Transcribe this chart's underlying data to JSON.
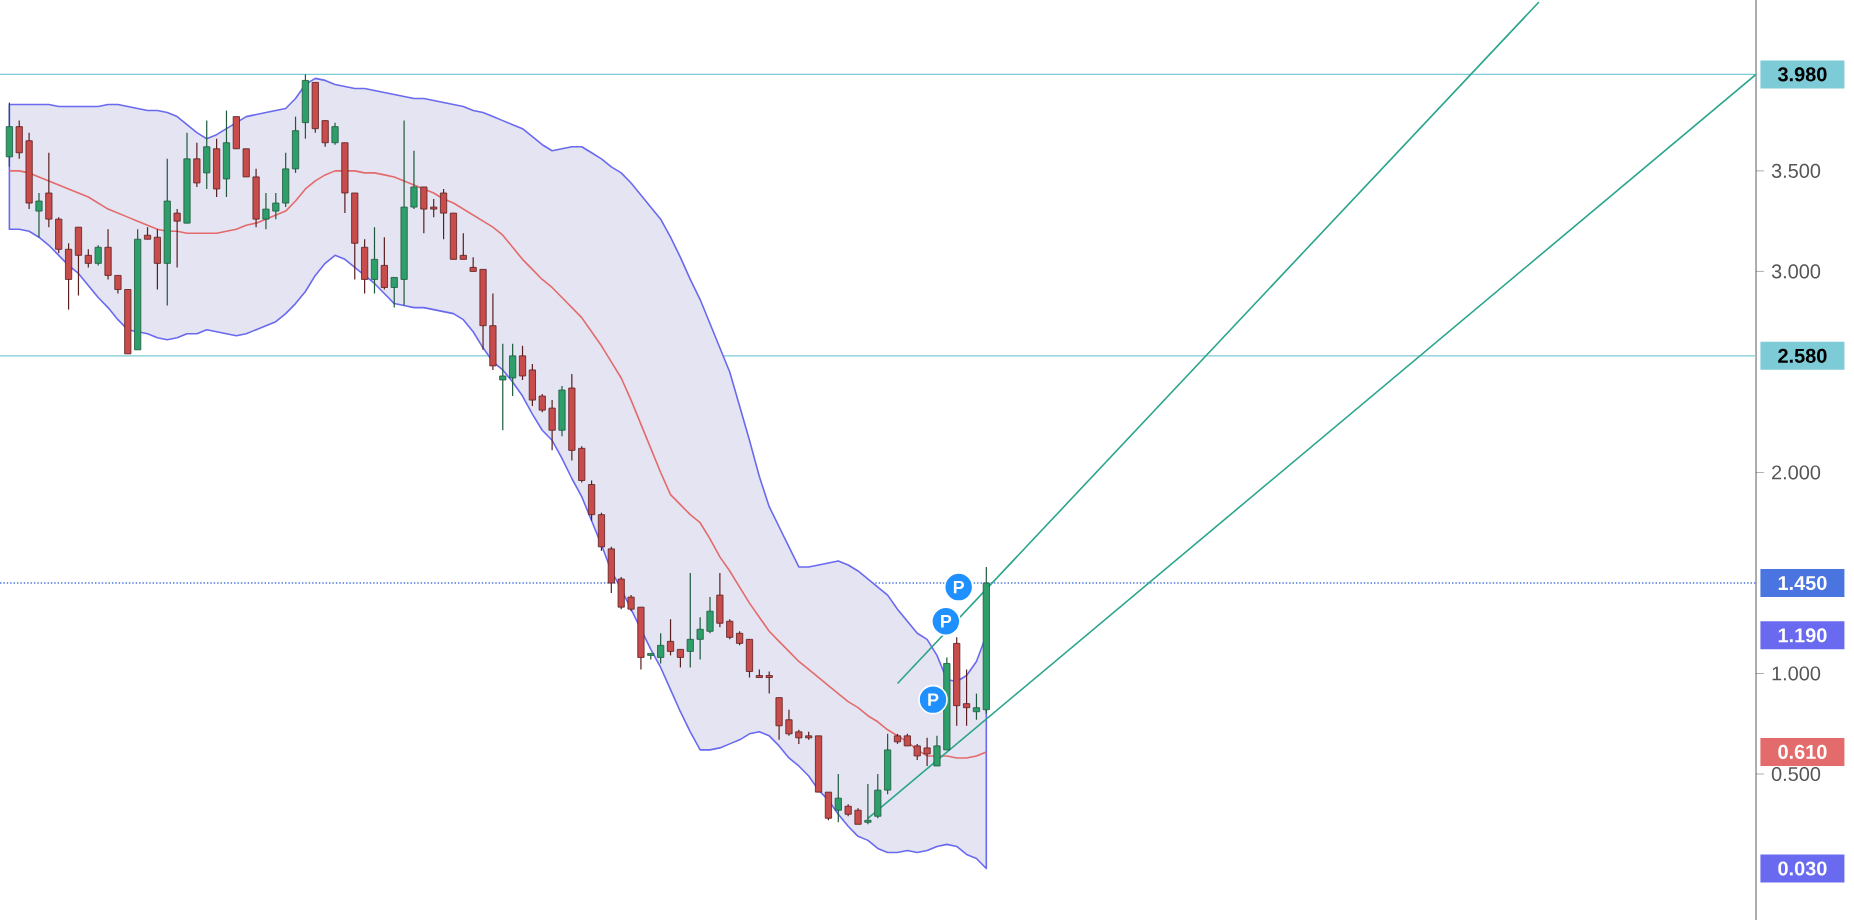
{
  "chart_data": {
    "type": "candlestick",
    "categories": [
      null,
      null,
      null,
      null,
      null,
      null,
      null,
      null,
      null,
      null,
      null,
      null,
      null,
      null,
      null,
      null,
      null,
      null,
      null,
      null,
      null,
      null,
      null,
      null,
      null,
      null,
      null,
      null,
      null,
      null,
      null,
      null,
      null,
      null,
      null,
      null,
      null,
      null,
      null,
      null,
      null,
      null,
      null,
      null,
      null,
      null,
      null,
      null,
      null,
      null,
      null,
      null,
      null,
      null,
      null,
      null,
      null,
      null,
      null,
      null,
      null,
      null,
      null,
      null,
      null,
      null,
      null,
      null,
      null,
      null,
      null,
      null,
      null,
      null,
      null,
      null,
      null,
      null,
      null,
      null,
      null,
      null,
      null,
      null,
      null,
      null,
      null,
      null,
      null,
      null,
      null,
      null,
      null,
      null,
      null,
      null,
      null,
      null,
      null,
      null,
      null,
      null,
      null,
      null,
      null,
      null,
      null,
      null,
      null,
      null,
      null,
      null,
      null,
      null,
      null,
      null,
      null,
      null,
      null,
      null,
      null,
      null,
      null,
      null,
      null,
      null,
      null,
      null,
      null,
      null,
      null,
      null,
      null,
      null,
      null,
      null,
      null,
      null,
      null,
      null,
      null,
      null,
      null,
      null,
      null,
      null,
      null,
      null,
      null,
      null,
      null,
      null,
      null,
      null,
      null,
      null,
      null,
      null,
      null,
      null,
      null,
      null,
      null,
      null,
      null,
      null,
      null,
      null,
      null,
      null,
      null,
      null,
      null,
      null,
      null,
      null,
      null,
      null
    ],
    "ohlc": [
      [
        3.57,
        3.84,
        3.52,
        3.72
      ],
      [
        3.72,
        3.75,
        3.56,
        3.59
      ],
      [
        3.65,
        3.69,
        3.31,
        3.34
      ],
      [
        3.3,
        3.39,
        3.17,
        3.35
      ],
      [
        3.39,
        3.59,
        3.22,
        3.26
      ],
      [
        3.26,
        3.27,
        3.09,
        3.11
      ],
      [
        3.11,
        3.14,
        2.81,
        2.96
      ],
      [
        3.22,
        3.22,
        2.88,
        3.08
      ],
      [
        3.08,
        3.11,
        3.02,
        3.04
      ],
      [
        3.04,
        3.13,
        3.03,
        3.12
      ],
      [
        3.12,
        3.21,
        2.96,
        2.98
      ],
      [
        2.98,
        2.98,
        2.89,
        2.91
      ],
      [
        2.91,
        2.91,
        2.59,
        2.59
      ],
      [
        2.61,
        3.21,
        2.61,
        3.16
      ],
      [
        3.18,
        3.22,
        3.16,
        3.16
      ],
      [
        3.17,
        3.21,
        2.91,
        3.04
      ],
      [
        3.04,
        3.56,
        2.83,
        3.35
      ],
      [
        3.29,
        3.31,
        3.02,
        3.25
      ],
      [
        3.24,
        3.69,
        3.24,
        3.56
      ],
      [
        3.56,
        3.64,
        3.42,
        3.44
      ],
      [
        3.49,
        3.75,
        3.41,
        3.62
      ],
      [
        3.61,
        3.66,
        3.37,
        3.41
      ],
      [
        3.46,
        3.8,
        3.37,
        3.64
      ],
      [
        3.77,
        3.77,
        3.61,
        3.61
      ],
      [
        3.61,
        3.61,
        3.47,
        3.47
      ],
      [
        3.47,
        3.51,
        3.22,
        3.26
      ],
      [
        3.26,
        3.39,
        3.21,
        3.31
      ],
      [
        3.3,
        3.39,
        3.26,
        3.34
      ],
      [
        3.34,
        3.59,
        3.32,
        3.51
      ],
      [
        3.51,
        3.77,
        3.49,
        3.7
      ],
      [
        3.74,
        3.98,
        3.66,
        3.95
      ],
      [
        3.94,
        3.94,
        3.69,
        3.71
      ],
      [
        3.75,
        3.75,
        3.62,
        3.64
      ],
      [
        3.64,
        3.74,
        3.63,
        3.72
      ],
      [
        3.64,
        3.64,
        3.29,
        3.39
      ],
      [
        3.39,
        3.39,
        2.96,
        3.14
      ],
      [
        3.12,
        3.16,
        2.89,
        2.96
      ],
      [
        2.96,
        3.22,
        2.89,
        3.06
      ],
      [
        3.03,
        3.17,
        2.91,
        2.92
      ],
      [
        2.92,
        2.97,
        2.82,
        2.97
      ],
      [
        2.96,
        3.75,
        2.83,
        3.32
      ],
      [
        3.32,
        3.6,
        3.31,
        3.42
      ],
      [
        3.42,
        3.42,
        3.19,
        3.31
      ],
      [
        3.32,
        3.36,
        3.27,
        3.31
      ],
      [
        3.39,
        3.41,
        3.16,
        3.29
      ],
      [
        3.29,
        3.29,
        3.06,
        3.06
      ],
      [
        3.08,
        3.19,
        3.06,
        3.06
      ],
      [
        3.02,
        3.07,
        3.0,
        3.0
      ],
      [
        3.01,
        3.01,
        2.61,
        2.73
      ],
      [
        2.73,
        2.89,
        2.51,
        2.53
      ],
      [
        2.46,
        2.64,
        2.21,
        2.48
      ],
      [
        2.47,
        2.64,
        2.38,
        2.58
      ],
      [
        2.58,
        2.63,
        2.46,
        2.48
      ],
      [
        2.51,
        2.54,
        2.33,
        2.36
      ],
      [
        2.38,
        2.39,
        2.3,
        2.31
      ],
      [
        2.32,
        2.36,
        2.11,
        2.21
      ],
      [
        2.21,
        2.43,
        2.18,
        2.41
      ],
      [
        2.42,
        2.49,
        2.06,
        2.11
      ],
      [
        2.12,
        2.13,
        1.95,
        1.96
      ],
      [
        1.94,
        1.96,
        1.76,
        1.79
      ],
      [
        1.79,
        1.8,
        1.61,
        1.63
      ],
      [
        1.62,
        1.63,
        1.4,
        1.45
      ],
      [
        1.47,
        1.48,
        1.32,
        1.33
      ],
      [
        1.38,
        1.39,
        1.31,
        1.32
      ],
      [
        1.33,
        1.33,
        1.02,
        1.08
      ],
      [
        1.09,
        1.1,
        1.07,
        1.1
      ],
      [
        1.08,
        1.2,
        1.05,
        1.14
      ],
      [
        1.16,
        1.27,
        1.09,
        1.11
      ],
      [
        1.12,
        1.12,
        1.03,
        1.08
      ],
      [
        1.11,
        1.5,
        1.03,
        1.17
      ],
      [
        1.17,
        1.28,
        1.07,
        1.22
      ],
      [
        1.21,
        1.38,
        1.2,
        1.31
      ],
      [
        1.39,
        1.5,
        1.23,
        1.25
      ],
      [
        1.26,
        1.27,
        1.17,
        1.18
      ],
      [
        1.2,
        1.21,
        1.14,
        1.15
      ],
      [
        1.17,
        1.17,
        0.98,
        1.01
      ],
      [
        0.99,
        1.02,
        0.98,
        0.98
      ],
      [
        0.99,
        1.01,
        0.9,
        0.98
      ],
      [
        0.88,
        0.88,
        0.67,
        0.74
      ],
      [
        0.77,
        0.82,
        0.69,
        0.7
      ],
      [
        0.71,
        0.72,
        0.65,
        0.68
      ],
      [
        0.69,
        0.71,
        0.67,
        0.68
      ],
      [
        0.69,
        0.69,
        0.41,
        0.41
      ],
      [
        0.41,
        0.41,
        0.27,
        0.28
      ],
      [
        0.32,
        0.5,
        0.26,
        0.38
      ],
      [
        0.34,
        0.35,
        0.29,
        0.3
      ],
      [
        0.32,
        0.33,
        0.25,
        0.25
      ],
      [
        0.26,
        0.45,
        0.25,
        0.27
      ],
      [
        0.29,
        0.5,
        0.28,
        0.42
      ],
      [
        0.42,
        0.7,
        0.4,
        0.62
      ],
      [
        0.69,
        0.7,
        0.65,
        0.66
      ],
      [
        0.69,
        0.7,
        0.64,
        0.64
      ],
      [
        0.64,
        0.65,
        0.57,
        0.59
      ],
      [
        0.63,
        0.68,
        0.54,
        0.6
      ],
      [
        0.54,
        0.69,
        0.54,
        0.64
      ],
      [
        0.62,
        1.08,
        0.62,
        1.05
      ],
      [
        1.15,
        1.18,
        0.74,
        0.84
      ],
      [
        0.85,
        1.02,
        0.74,
        0.83
      ],
      [
        0.81,
        0.9,
        0.77,
        0.83
      ],
      [
        0.82,
        1.53,
        0.8,
        1.45
      ],
      null,
      null,
      null,
      null,
      null,
      null,
      null,
      null,
      null,
      null,
      null,
      null,
      null,
      null,
      null,
      null,
      null,
      null,
      null,
      null,
      null,
      null,
      null,
      null,
      null,
      null,
      null,
      null,
      null,
      null,
      null,
      null,
      null,
      null,
      null,
      null,
      null,
      null,
      null,
      null,
      null,
      null,
      null,
      null,
      null,
      null,
      null,
      null,
      null,
      null,
      null,
      null,
      null,
      null,
      null,
      null,
      null,
      null,
      null,
      null,
      null,
      null,
      null,
      null,
      null,
      null,
      null,
      null,
      null,
      null,
      null,
      null,
      null,
      null,
      null,
      null,
      null,
      null
    ],
    "series": [
      {
        "type": "line",
        "color": "#e36b6b",
        "values": [
          3.5,
          3.5,
          3.49,
          3.47,
          3.45,
          3.43,
          3.41,
          3.39,
          3.37,
          3.34,
          3.31,
          3.29,
          3.27,
          3.25,
          3.23,
          3.21,
          3.2,
          3.2,
          3.19,
          3.19,
          3.19,
          3.19,
          3.2,
          3.21,
          3.23,
          3.24,
          3.26,
          3.28,
          3.3,
          3.35,
          3.41,
          3.45,
          3.48,
          3.5,
          3.5,
          3.5,
          3.49,
          3.49,
          3.48,
          3.47,
          3.45,
          3.43,
          3.41,
          3.39,
          3.36,
          3.34,
          3.31,
          3.28,
          3.25,
          3.22,
          3.18,
          3.12,
          3.06,
          3.01,
          2.96,
          2.92,
          2.87,
          2.82,
          2.77,
          2.7,
          2.63,
          2.55,
          2.47,
          2.36,
          2.24,
          2.12,
          2.0,
          1.89,
          1.84,
          1.79,
          1.75,
          1.67,
          1.58,
          1.51,
          1.43,
          1.35,
          1.28,
          1.21,
          1.16,
          1.11,
          1.06,
          1.02,
          0.98,
          0.94,
          0.9,
          0.86,
          0.83,
          0.79,
          0.76,
          0.72,
          0.69,
          0.66,
          0.62,
          0.59,
          0.59,
          0.59,
          0.58,
          0.58,
          0.59,
          0.61,
          null,
          null,
          null,
          null,
          null,
          null,
          null,
          null,
          null,
          null,
          null,
          null,
          null,
          null,
          null,
          null,
          null,
          null,
          null,
          null,
          null,
          null,
          null,
          null,
          null,
          null,
          null,
          null,
          null,
          null,
          null,
          null,
          null,
          null,
          null,
          null,
          null,
          null,
          null,
          null,
          null,
          null,
          null,
          null,
          null,
          null,
          null,
          null,
          null,
          null,
          null,
          null,
          null,
          null,
          null,
          null,
          null,
          null,
          null,
          null,
          null,
          null,
          null,
          null,
          null,
          null,
          null,
          null,
          null,
          null,
          null,
          null,
          null,
          null,
          null,
          null,
          null,
          null
        ],
        "lower": [
          3.21,
          3.21,
          3.2,
          3.17,
          3.13,
          3.08,
          3.03,
          2.99,
          2.93,
          2.87,
          2.82,
          2.76,
          2.71,
          2.7,
          2.69,
          2.67,
          2.66,
          2.67,
          2.69,
          2.69,
          2.71,
          2.7,
          2.69,
          2.68,
          2.69,
          2.71,
          2.73,
          2.75,
          2.79,
          2.84,
          2.9,
          2.98,
          3.04,
          3.08,
          3.06,
          3.02,
          2.98,
          2.94,
          2.89,
          2.84,
          2.83,
          2.82,
          2.82,
          2.81,
          2.8,
          2.79,
          2.76,
          2.7,
          2.62,
          2.55,
          2.51,
          2.45,
          2.38,
          2.29,
          2.21,
          2.16,
          2.07,
          1.97,
          1.88,
          1.76,
          1.64,
          1.51,
          1.42,
          1.32,
          1.22,
          1.12,
          1.03,
          0.92,
          0.81,
          0.71,
          0.62,
          0.62,
          0.63,
          0.65,
          0.67,
          0.7,
          0.71,
          0.69,
          0.64,
          0.58,
          0.54,
          0.49,
          0.42,
          0.37,
          0.3,
          0.24,
          0.19,
          0.17,
          0.13,
          0.11,
          0.11,
          0.12,
          0.11,
          0.12,
          0.14,
          0.15,
          0.14,
          0.1,
          0.08,
          0.03,
          null,
          null,
          null,
          null,
          null,
          null,
          null,
          null,
          null,
          null,
          null,
          null,
          null,
          null,
          null,
          null,
          null,
          null,
          null,
          null,
          null,
          null,
          null,
          null,
          null,
          null,
          null,
          null,
          null,
          null,
          null,
          null,
          null,
          null,
          null,
          null,
          null,
          null,
          null,
          null,
          null,
          null,
          null,
          null,
          null,
          null,
          null,
          null,
          null,
          null,
          null,
          null,
          null,
          null,
          null,
          null,
          null,
          null,
          null,
          null,
          null,
          null,
          null,
          null,
          null,
          null,
          null,
          null,
          null,
          null,
          null,
          null,
          null,
          null,
          null,
          null,
          null,
          null
        ],
        "upper": [
          3.83,
          3.83,
          3.83,
          3.83,
          3.83,
          3.82,
          3.82,
          3.82,
          3.82,
          3.82,
          3.83,
          3.83,
          3.82,
          3.81,
          3.8,
          3.8,
          3.79,
          3.77,
          3.73,
          3.69,
          3.66,
          3.68,
          3.71,
          3.74,
          3.77,
          3.78,
          3.79,
          3.8,
          3.81,
          3.86,
          3.93,
          3.96,
          3.95,
          3.93,
          3.92,
          3.91,
          3.91,
          3.9,
          3.89,
          3.88,
          3.87,
          3.86,
          3.86,
          3.85,
          3.84,
          3.83,
          3.82,
          3.8,
          3.79,
          3.77,
          3.75,
          3.73,
          3.71,
          3.67,
          3.63,
          3.6,
          3.61,
          3.62,
          3.62,
          3.59,
          3.56,
          3.52,
          3.49,
          3.44,
          3.38,
          3.32,
          3.26,
          3.17,
          3.07,
          2.96,
          2.86,
          2.74,
          2.62,
          2.5,
          2.33,
          2.16,
          1.98,
          1.83,
          1.73,
          1.63,
          1.53,
          1.53,
          1.54,
          1.55,
          1.56,
          1.54,
          1.51,
          1.47,
          1.43,
          1.39,
          1.32,
          1.26,
          1.2,
          1.17,
          1.09,
          0.97,
          0.96,
          0.99,
          1.06,
          1.19,
          null,
          null,
          null,
          null,
          null,
          null,
          null,
          null,
          null,
          null,
          null,
          null,
          null,
          null,
          null,
          null,
          null,
          null,
          null,
          null,
          null,
          null,
          null,
          null,
          null,
          null,
          null,
          null,
          null,
          null,
          null,
          null,
          null,
          null,
          null,
          null,
          null,
          null,
          null,
          null,
          null,
          null,
          null,
          null,
          null,
          null,
          null,
          null,
          null,
          null,
          null,
          null,
          null,
          null,
          null,
          null,
          null,
          null,
          null,
          null,
          null,
          null,
          null,
          null,
          null,
          null,
          null,
          null,
          null,
          null,
          null,
          null,
          null,
          null,
          null,
          null,
          null,
          null
        ]
      },
      {
        "type": "line",
        "color": "#2aa58c",
        "values": [
          null,
          null,
          null,
          null,
          null,
          null,
          null,
          null,
          null,
          null,
          null,
          null,
          null,
          null,
          null,
          null,
          null,
          null,
          null,
          null,
          null,
          null,
          null,
          null,
          null,
          null,
          null,
          null,
          null,
          null,
          null,
          null,
          null,
          null,
          null,
          null,
          null,
          null,
          null,
          null,
          null,
          null,
          null,
          null,
          null,
          null,
          null,
          null,
          null,
          null,
          null,
          null,
          null,
          null,
          null,
          null,
          null,
          null,
          null,
          null,
          null,
          null,
          null,
          null,
          null,
          null,
          null,
          null,
          null,
          null,
          null,
          null,
          null,
          null,
          null,
          null,
          null,
          null,
          null,
          null,
          null,
          null,
          null,
          null,
          null,
          null,
          null,
          null,
          null,
          null,
          0.95,
          null,
          null,
          null,
          null,
          null,
          null,
          null,
          null,
          null,
          null,
          null,
          null,
          null,
          null,
          null,
          null,
          null,
          null,
          null,
          null,
          null,
          null,
          null,
          null,
          null,
          null,
          null,
          null,
          null,
          null,
          null,
          null,
          null,
          null,
          null,
          null,
          null,
          null,
          null,
          null,
          null,
          null,
          null,
          null,
          null,
          null,
          null,
          null,
          null,
          null,
          null,
          null,
          null,
          null,
          null,
          null,
          null,
          null,
          null,
          null,
          null,
          null,
          null,
          null,
          4.34,
          null,
          null,
          null,
          null,
          null,
          null,
          null,
          null,
          null,
          null,
          null,
          null,
          null,
          null,
          null,
          null,
          null,
          null,
          null,
          null,
          null,
          null
        ]
      },
      {
        "type": "line",
        "color": "#2aa58c",
        "values": [
          null,
          null,
          null,
          null,
          null,
          null,
          null,
          null,
          null,
          null,
          null,
          null,
          null,
          null,
          null,
          null,
          null,
          null,
          null,
          null,
          null,
          null,
          null,
          null,
          null,
          null,
          null,
          null,
          null,
          null,
          null,
          null,
          null,
          null,
          null,
          null,
          null,
          null,
          null,
          null,
          null,
          null,
          null,
          null,
          null,
          null,
          null,
          null,
          null,
          null,
          null,
          null,
          null,
          null,
          null,
          null,
          null,
          null,
          null,
          null,
          null,
          null,
          null,
          null,
          null,
          null,
          null,
          null,
          null,
          null,
          null,
          null,
          null,
          null,
          null,
          null,
          null,
          null,
          null,
          null,
          null,
          null,
          null,
          null,
          null,
          null,
          null,
          0.28,
          null,
          null,
          null,
          null,
          null,
          null,
          null,
          null,
          null,
          null,
          null,
          null,
          null,
          null,
          null,
          null,
          null,
          null,
          null,
          null,
          null,
          null,
          null,
          null,
          null,
          null,
          null,
          null,
          null,
          null,
          null,
          null,
          null,
          null,
          null,
          null,
          null,
          null,
          null,
          null,
          null,
          null,
          null,
          null,
          null,
          null,
          null,
          null,
          null,
          null,
          null,
          null,
          null,
          null,
          null,
          null,
          null,
          null,
          null,
          null,
          null,
          null,
          null,
          null,
          null,
          null,
          null,
          null,
          null,
          null,
          null,
          null,
          null,
          null,
          null,
          null,
          null,
          null,
          null,
          null,
          null,
          null,
          null,
          null,
          null,
          null,
          null,
          null,
          null,
          3.98
        ]
      }
    ],
    "ref_lines": [
      {
        "axis": "y",
        "value": 3.98,
        "label": "3.980",
        "color": "#7ccbd6",
        "line_style": "solid"
      },
      {
        "axis": "y",
        "value": 2.58,
        "label": "2.580",
        "color": "#7ccbd6",
        "line_style": "solid"
      },
      {
        "axis": "y",
        "value": 1.45,
        "label": "1.450",
        "color": "#4a74e0",
        "line_style": "dotted"
      }
    ],
    "annotations": [
      "1.190",
      "0.610",
      "0.030",
      {
        "text": "P",
        "y": 1.43
      },
      {
        "text": "P",
        "y": 1.26
      },
      {
        "text": "P",
        "y": 0.87
      }
    ],
    "ylim": [
      -0.226,
      4.35
    ],
    "yticks": [
      {
        "value": 0.5,
        "label": "0.500"
      },
      {
        "value": 1.0,
        "label": "1.000"
      },
      {
        "value": 2.0,
        "label": "2.000"
      },
      {
        "value": 3.0,
        "label": "3.000"
      },
      {
        "value": 3.5,
        "label": "3.500"
      }
    ],
    "tick_labels": "y"
  }
}
